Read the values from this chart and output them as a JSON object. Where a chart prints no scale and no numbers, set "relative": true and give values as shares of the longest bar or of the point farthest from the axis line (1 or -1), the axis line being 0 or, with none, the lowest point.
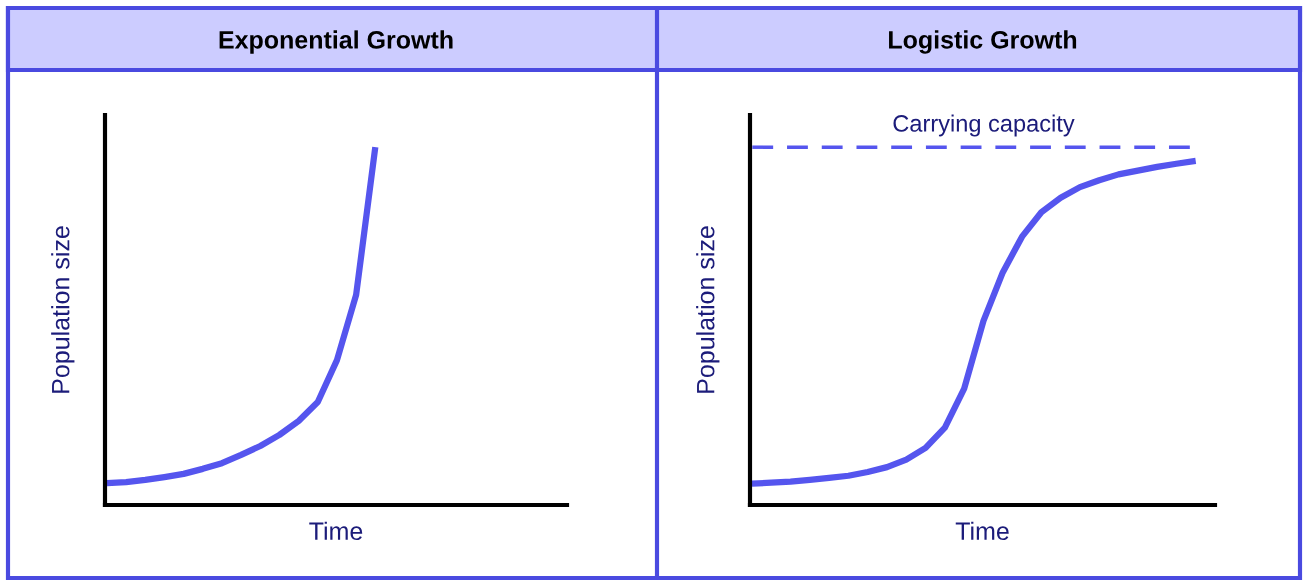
{
  "chart_data": [
    {
      "type": "line",
      "title": "Exponential Growth",
      "xlabel": "Time",
      "ylabel": "Population size",
      "relative": true,
      "legend": false,
      "marker": "none",
      "line_style": "solid",
      "categories": [
        null,
        null,
        null,
        null,
        null,
        null,
        null,
        null,
        null,
        null,
        null,
        null,
        null,
        null,
        null,
        null,
        null,
        null,
        null,
        null,
        null,
        null,
        null,
        null,
        null
      ],
      "series": [
        {
          "color": "#5555ee",
          "values": [
            0.061,
            0.064,
            0.07,
            0.078,
            0.087,
            0.101,
            0.117,
            0.14,
            0.165,
            0.196,
            0.235,
            0.288,
            0.405,
            0.587,
            1.0,
            null,
            null,
            null,
            null,
            null,
            null,
            null,
            null,
            null,
            null
          ]
        }
      ]
    },
    {
      "type": "line",
      "title": "Logistic Growth",
      "xlabel": "Time",
      "ylabel": "Population size",
      "relative": true,
      "legend": false,
      "marker": "none",
      "line_style": "solid",
      "categories": [
        null,
        null,
        null,
        null,
        null,
        null,
        null,
        null,
        null,
        null,
        null,
        null,
        null,
        null,
        null,
        null,
        null,
        null,
        null,
        null,
        null,
        null,
        null,
        null,
        null
      ],
      "series": [
        {
          "color": "#5555ee",
          "values": [
            0.062,
            0.065,
            0.068,
            0.073,
            0.079,
            0.085,
            0.096,
            0.11,
            0.132,
            0.166,
            0.225,
            0.338,
            0.535,
            0.676,
            0.78,
            0.851,
            0.893,
            0.924,
            0.944,
            0.961,
            0.972,
            0.983,
            0.992,
            1.0,
            null
          ]
        }
      ],
      "ref_lines": [
        {
          "axis": "y",
          "value": 1.04,
          "label": "Carrying capacity",
          "color": "#5555ee",
          "line_style": "dashed"
        }
      ]
    }
  ]
}
